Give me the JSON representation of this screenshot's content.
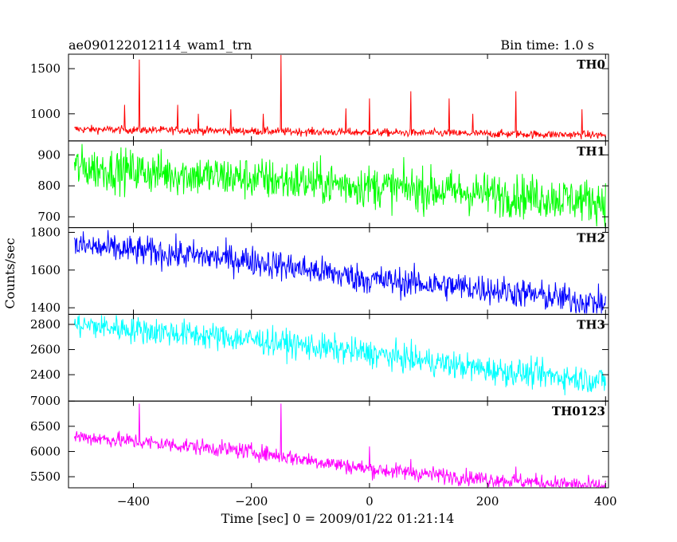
{
  "header": {
    "title": "ae090122012114_wam1_trn",
    "bin_time": "Bin time: 1.0 s"
  },
  "axes": {
    "xlabel": "Time [sec] 0 = 2009/01/22 01:21:14",
    "ylabel": "Counts/sec"
  },
  "chart_data": {
    "type": "line",
    "x_range": [
      -510,
      405
    ],
    "x_ticks": [
      -400,
      -200,
      0,
      200,
      400
    ],
    "x_tick_labels": [
      "−400",
      "−200",
      "0",
      "200",
      "400"
    ],
    "x_data_range": [
      -500,
      400
    ],
    "panels": [
      {
        "name": "TH0",
        "color": "#ff0000",
        "ylim": [
          700,
          1660
        ],
        "y_ticks": [
          1000,
          1500
        ],
        "y_tick_labels": [
          "1000",
          "1500"
        ],
        "trend": [
          [
            -500,
            830
          ],
          [
            400,
            765
          ]
        ],
        "noise": 22,
        "spikes": [
          [
            -415,
            1100
          ],
          [
            -390,
            1600
          ],
          [
            -325,
            1100
          ],
          [
            -290,
            1000
          ],
          [
            -235,
            1050
          ],
          [
            -180,
            1000
          ],
          [
            -150,
            1660
          ],
          [
            -40,
            1060
          ],
          [
            0,
            1170
          ],
          [
            70,
            1250
          ],
          [
            135,
            1170
          ],
          [
            175,
            1000
          ],
          [
            248,
            1250
          ],
          [
            360,
            1050
          ]
        ]
      },
      {
        "name": "TH1",
        "color": "#00ff00",
        "ylim": [
          665,
          945
        ],
        "y_ticks": [
          700,
          800,
          900
        ],
        "y_tick_labels": [
          "700",
          "800",
          "900"
        ],
        "trend": [
          [
            -500,
            860
          ],
          [
            400,
            750
          ]
        ],
        "noise": 35,
        "spikes": []
      },
      {
        "name": "TH2",
        "color": "#0000ff",
        "ylim": [
          1365,
          1825
        ],
        "y_ticks": [
          1400,
          1600,
          1800
        ],
        "y_tick_labels": [
          "1400",
          "1600",
          "1800"
        ],
        "trend": [
          [
            -500,
            1730
          ],
          [
            -200,
            1650
          ],
          [
            0,
            1550
          ],
          [
            200,
            1500
          ],
          [
            400,
            1420
          ]
        ],
        "noise": 40,
        "spikes": []
      },
      {
        "name": "TH3",
        "color": "#00ffff",
        "ylim": [
          2190,
          2880
        ],
        "y_ticks": [
          2400,
          2600,
          2800
        ],
        "y_tick_labels": [
          "2400",
          "2600",
          "2800"
        ],
        "trend": [
          [
            -500,
            2800
          ],
          [
            -200,
            2680
          ],
          [
            0,
            2570
          ],
          [
            200,
            2440
          ],
          [
            400,
            2350
          ]
        ],
        "noise": 55,
        "spikes": []
      },
      {
        "name": "TH0123",
        "color": "#ff00ff",
        "ylim": [
          5280,
          7000
        ],
        "y_ticks": [
          5500,
          6000,
          6500,
          7000
        ],
        "y_tick_labels": [
          "5500",
          "6000",
          "6500",
          "7000"
        ],
        "trend": [
          [
            -500,
            6300
          ],
          [
            -200,
            6000
          ],
          [
            0,
            5650
          ],
          [
            200,
            5450
          ],
          [
            400,
            5300
          ]
        ],
        "noise": 80,
        "spikes": [
          [
            -390,
            6950
          ],
          [
            -150,
            6950
          ],
          [
            0,
            6100
          ],
          [
            70,
            5850
          ],
          [
            248,
            5700
          ]
        ]
      }
    ]
  }
}
